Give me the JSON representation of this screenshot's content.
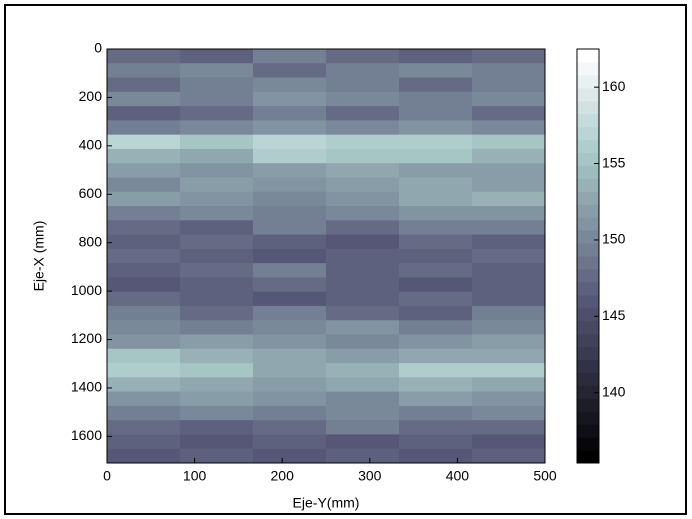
{
  "chart_data": {
    "type": "heatmap",
    "colormap": "bone",
    "xlabel": "Eje-Y(mm)",
    "ylabel": "Eje-X (mm)",
    "xlim": [
      0,
      500
    ],
    "xticks": [
      0,
      100,
      200,
      300,
      400,
      500
    ],
    "ylim": [
      0,
      1710
    ],
    "yticks": [
      0,
      200,
      400,
      600,
      800,
      1000,
      1200,
      1400,
      1600
    ],
    "y_reversed": true,
    "clim": [
      135.4,
      162.5
    ],
    "cticks": [
      140,
      145,
      150,
      155,
      160
    ],
    "z": [
      [
        148,
        147,
        149,
        148,
        147,
        148
      ],
      [
        149,
        150,
        148,
        149,
        150,
        149
      ],
      [
        148,
        149,
        150,
        149,
        148,
        149
      ],
      [
        150,
        149,
        151,
        150,
        149,
        150
      ],
      [
        147,
        148,
        149,
        148,
        149,
        148
      ],
      [
        149,
        150,
        151,
        150,
        151,
        150
      ],
      [
        157,
        155,
        157,
        156,
        156,
        155
      ],
      [
        154,
        153,
        156,
        155,
        155,
        154
      ],
      [
        152,
        151,
        152,
        153,
        152,
        152
      ],
      [
        150,
        152,
        151,
        152,
        153,
        152
      ],
      [
        152,
        151,
        150,
        151,
        153,
        154
      ],
      [
        149,
        150,
        149,
        150,
        151,
        151
      ],
      [
        148,
        147,
        149,
        148,
        149,
        149
      ],
      [
        147,
        148,
        147,
        146,
        148,
        147
      ],
      [
        148,
        147,
        146,
        147,
        147,
        148
      ],
      [
        147,
        148,
        149,
        147,
        148,
        147
      ],
      [
        146,
        147,
        148,
        147,
        146,
        147
      ],
      [
        148,
        147,
        146,
        147,
        148,
        147
      ],
      [
        149,
        148,
        149,
        148,
        147,
        149
      ],
      [
        150,
        149,
        150,
        151,
        149,
        150
      ],
      [
        151,
        152,
        151,
        150,
        151,
        152
      ],
      [
        155,
        154,
        153,
        152,
        153,
        153
      ],
      [
        156,
        155,
        153,
        154,
        156,
        156
      ],
      [
        154,
        153,
        152,
        153,
        154,
        153
      ],
      [
        151,
        152,
        151,
        150,
        152,
        151
      ],
      [
        149,
        150,
        149,
        150,
        149,
        150
      ],
      [
        148,
        147,
        148,
        149,
        148,
        148
      ],
      [
        147,
        146,
        147,
        146,
        147,
        146
      ],
      [
        146,
        147,
        146,
        147,
        146,
        147
      ]
    ]
  }
}
